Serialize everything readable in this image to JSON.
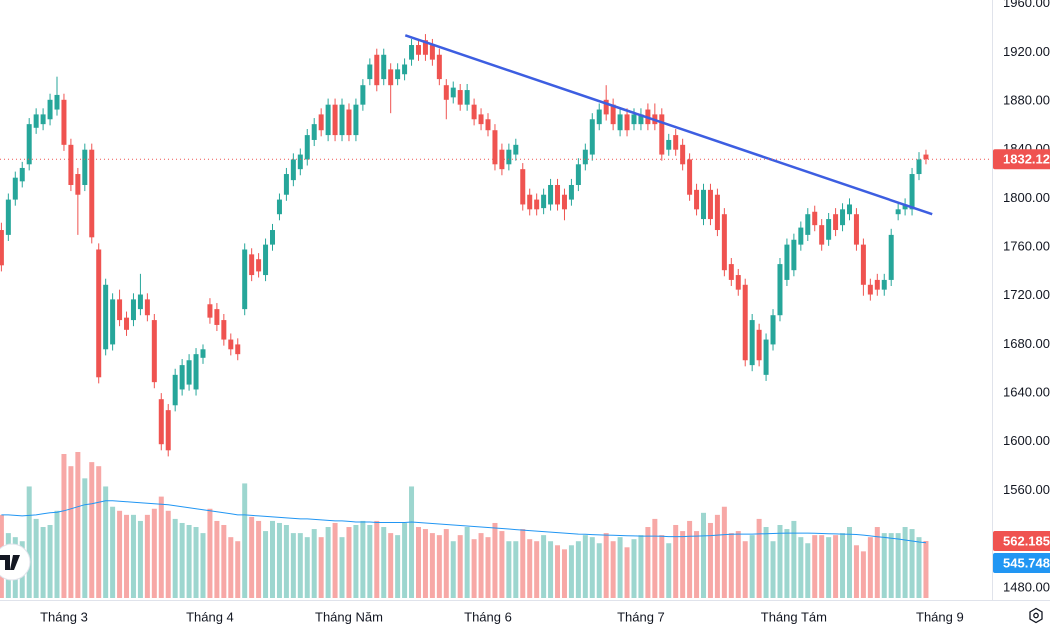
{
  "chart_data": {
    "type": "candlestick",
    "xlim": [
      -0.2,
      142.5
    ],
    "ylim": [
      1470,
      1963
    ],
    "grid": false,
    "xticks": [
      {
        "value": 9,
        "label": "Tháng 3"
      },
      {
        "value": 30,
        "label": "Tháng 4"
      },
      {
        "value": 50,
        "label": "Tháng Năm"
      },
      {
        "value": 70,
        "label": "Tháng 6"
      },
      {
        "value": 92,
        "label": "Tháng 7"
      },
      {
        "value": 114,
        "label": "Tháng Tám"
      },
      {
        "value": 135,
        "label": "Tháng 9"
      }
    ],
    "yticks": [
      {
        "value": 1960,
        "label": "1960.00"
      },
      {
        "value": 1920,
        "label": "1920.00"
      },
      {
        "value": 1880,
        "label": "1880.00"
      },
      {
        "value": 1840,
        "label": "1840.00"
      },
      {
        "value": 1800,
        "label": "1800.00"
      },
      {
        "value": 1760,
        "label": "1760.00"
      },
      {
        "value": 1720,
        "label": "1720.00"
      },
      {
        "value": 1680,
        "label": "1680.00"
      },
      {
        "value": 1640,
        "label": "1640.00"
      },
      {
        "value": 1600,
        "label": "1600.00"
      },
      {
        "value": 1560,
        "label": "1560.00"
      },
      {
        "value": 1480,
        "label": "1480.00"
      }
    ],
    "up_color": "#26a69a",
    "down_color": "#ef5350",
    "volume_up_color": "#9dd6cf",
    "volume_down_color": "#f7a8a6",
    "volume_ma_color": "#2196f3",
    "open": [
      1774,
      1770,
      1799,
      1814,
      1828,
      1858,
      1861,
      1865,
      1873,
      1881,
      1844,
      1820,
      1811,
      1840,
      1758,
      1676,
      1680,
      1717,
      1702,
      1700,
      1709,
      1717,
      1700,
      1635,
      1626,
      1630,
      1643,
      1647,
      1643,
      1669,
      1713,
      1709,
      1700,
      1684,
      1680,
      1709,
      1754,
      1750,
      1737,
      1762,
      1787,
      1803,
      1815,
      1824,
      1832,
      1848,
      1869,
      1852,
      1877,
      1852,
      1873,
      1852,
      1877,
      1898,
      1918,
      1898,
      1906,
      1898,
      1902,
      1914,
      1926,
      1930,
      1926,
      1918,
      1893,
      1883,
      1889,
      1877,
      1877,
      1869,
      1865,
      1856,
      1840,
      1828,
      1836,
      1824,
      1803,
      1799,
      1792,
      1795,
      1811,
      1803,
      1799,
      1811,
      1828,
      1836,
      1861,
      1881,
      1877,
      1856,
      1869,
      1861,
      1861,
      1873,
      1869,
      1869,
      1840,
      1852,
      1844,
      1832,
      1807,
      1783,
      1807,
      1803,
      1787,
      1746,
      1737,
      1729,
      1663,
      1692,
      1655,
      1680,
      1704,
      1733,
      1741,
      1762,
      1770,
      1789,
      1778,
      1766,
      1787,
      1778,
      1787,
      1787,
      1762,
      1729,
      1733,
      1725,
      1733,
      1787,
      1791,
      1791,
      1820,
      1836
    ],
    "high": [
      1780,
      1804,
      1822,
      1830,
      1866,
      1874,
      1874,
      1886,
      1900,
      1886,
      1849,
      1825,
      1845,
      1845,
      1763,
      1734,
      1722,
      1725,
      1707,
      1722,
      1738,
      1722,
      1705,
      1640,
      1631,
      1660,
      1668,
      1672,
      1677,
      1680,
      1718,
      1714,
      1705,
      1689,
      1685,
      1763,
      1759,
      1755,
      1767,
      1779,
      1804,
      1825,
      1837,
      1841,
      1857,
      1866,
      1874,
      1882,
      1882,
      1882,
      1878,
      1882,
      1898,
      1915,
      1923,
      1923,
      1911,
      1911,
      1915,
      1931,
      1931,
      1935,
      1931,
      1923,
      1898,
      1896,
      1894,
      1894,
      1882,
      1874,
      1870,
      1861,
      1845,
      1845,
      1849,
      1829,
      1808,
      1804,
      1808,
      1816,
      1816,
      1808,
      1816,
      1833,
      1845,
      1870,
      1878,
      1893,
      1882,
      1874,
      1874,
      1874,
      1874,
      1878,
      1878,
      1874,
      1853,
      1857,
      1849,
      1837,
      1812,
      1812,
      1812,
      1808,
      1792,
      1751,
      1742,
      1734,
      1705,
      1697,
      1689,
      1709,
      1751,
      1767,
      1771,
      1781,
      1792,
      1794,
      1783,
      1788,
      1792,
      1796,
      1800,
      1792,
      1767,
      1734,
      1738,
      1738,
      1775,
      1796,
      1800,
      1825,
      1838,
      1840
    ],
    "low": [
      1740,
      1765,
      1794,
      1809,
      1823,
      1853,
      1856,
      1860,
      1868,
      1839,
      1806,
      1770,
      1806,
      1763,
      1648,
      1671,
      1675,
      1695,
      1687,
      1695,
      1704,
      1699,
      1644,
      1593,
      1588,
      1625,
      1638,
      1642,
      1638,
      1664,
      1697,
      1691,
      1679,
      1671,
      1667,
      1704,
      1732,
      1735,
      1732,
      1757,
      1782,
      1798,
      1810,
      1819,
      1827,
      1843,
      1851,
      1847,
      1847,
      1847,
      1847,
      1847,
      1872,
      1893,
      1888,
      1893,
      1870,
      1893,
      1897,
      1909,
      1913,
      1913,
      1909,
      1893,
      1865,
      1878,
      1872,
      1872,
      1860,
      1856,
      1851,
      1823,
      1819,
      1823,
      1831,
      1790,
      1786,
      1786,
      1787,
      1790,
      1790,
      1782,
      1794,
      1806,
      1823,
      1831,
      1856,
      1864,
      1856,
      1851,
      1851,
      1856,
      1856,
      1856,
      1856,
      1831,
      1835,
      1835,
      1823,
      1798,
      1786,
      1778,
      1778,
      1769,
      1736,
      1728,
      1720,
      1662,
      1658,
      1662,
      1650,
      1675,
      1699,
      1728,
      1736,
      1757,
      1765,
      1773,
      1757,
      1761,
      1769,
      1773,
      1782,
      1757,
      1720,
      1716,
      1720,
      1720,
      1728,
      1782,
      1786,
      1786,
      1815,
      1828
    ],
    "close": [
      1745,
      1799,
      1817,
      1825,
      1861,
      1869,
      1869,
      1881,
      1885,
      1844,
      1811,
      1803,
      1840,
      1768,
      1653,
      1729,
      1717,
      1700,
      1692,
      1717,
      1721,
      1704,
      1649,
      1598,
      1593,
      1655,
      1663,
      1667,
      1672,
      1676,
      1702,
      1696,
      1684,
      1676,
      1672,
      1758,
      1737,
      1740,
      1762,
      1774,
      1799,
      1820,
      1832,
      1836,
      1852,
      1861,
      1856,
      1877,
      1852,
      1877,
      1852,
      1877,
      1893,
      1910,
      1893,
      1918,
      1893,
      1906,
      1910,
      1926,
      1918,
      1918,
      1914,
      1898,
      1881,
      1891,
      1877,
      1889,
      1865,
      1861,
      1856,
      1828,
      1824,
      1840,
      1844,
      1795,
      1791,
      1791,
      1803,
      1811,
      1795,
      1791,
      1811,
      1828,
      1840,
      1865,
      1873,
      1869,
      1861,
      1869,
      1856,
      1869,
      1869,
      1861,
      1861,
      1836,
      1848,
      1840,
      1828,
      1803,
      1791,
      1807,
      1783,
      1774,
      1741,
      1733,
      1725,
      1667,
      1700,
      1667,
      1684,
      1704,
      1746,
      1762,
      1766,
      1776,
      1787,
      1778,
      1762,
      1783,
      1774,
      1791,
      1795,
      1762,
      1729,
      1721,
      1725,
      1733,
      1770,
      1791,
      1795,
      1820,
      1832,
      1832.12
    ],
    "volume": [
      820,
      640,
      600,
      560,
      1100,
      780,
      700,
      720,
      860,
      1420,
      1300,
      1440,
      1180,
      1340,
      1300,
      1100,
      900,
      860,
      820,
      820,
      760,
      820,
      880,
      1000,
      860,
      780,
      740,
      720,
      700,
      640,
      880,
      760,
      720,
      600,
      560,
      1130,
      800,
      760,
      660,
      760,
      740,
      720,
      640,
      640,
      600,
      680,
      600,
      700,
      740,
      600,
      700,
      720,
      760,
      720,
      760,
      700,
      640,
      620,
      740,
      1100,
      700,
      680,
      640,
      620,
      680,
      560,
      620,
      700,
      580,
      640,
      600,
      740,
      660,
      560,
      560,
      680,
      580,
      560,
      620,
      560,
      520,
      480,
      520,
      560,
      620,
      600,
      540,
      640,
      560,
      600,
      500,
      580,
      620,
      700,
      780,
      620,
      540,
      720,
      660,
      760,
      660,
      840,
      740,
      820,
      900,
      640,
      660,
      560,
      620,
      780,
      700,
      560,
      720,
      680,
      760,
      600,
      540,
      620,
      620,
      600,
      620,
      640,
      700,
      520,
      460,
      600,
      700,
      640,
      640,
      640,
      700,
      680,
      600,
      562.185
    ],
    "volume_ma": [
      820,
      820,
      815,
      810,
      815,
      820,
      830,
      840,
      845,
      860,
      880,
      900,
      920,
      930,
      945,
      960,
      960,
      955,
      950,
      945,
      940,
      935,
      930,
      925,
      920,
      910,
      900,
      890,
      880,
      870,
      860,
      850,
      840,
      830,
      820,
      820,
      815,
      810,
      805,
      800,
      795,
      790,
      785,
      780,
      780,
      775,
      770,
      765,
      760,
      760,
      755,
      750,
      750,
      750,
      745,
      745,
      745,
      745,
      745,
      750,
      745,
      740,
      735,
      730,
      725,
      720,
      715,
      710,
      705,
      700,
      695,
      690,
      685,
      680,
      675,
      670,
      665,
      660,
      655,
      650,
      645,
      640,
      635,
      630,
      628,
      625,
      622,
      620,
      618,
      616,
      614,
      612,
      610,
      610,
      610,
      608,
      606,
      606,
      606,
      608,
      610,
      612,
      615,
      620,
      625,
      628,
      630,
      630,
      630,
      632,
      634,
      636,
      638,
      640,
      640,
      640,
      640,
      638,
      636,
      634,
      632,
      630,
      628,
      626,
      620,
      612,
      605,
      598,
      590,
      582,
      572,
      562,
      552,
      545.748
    ],
    "trendline": {
      "x": [
        58.1,
        133.9
      ],
      "values": [
        1934,
        1787
      ],
      "color": "#3d5ee1"
    }
  }
}
